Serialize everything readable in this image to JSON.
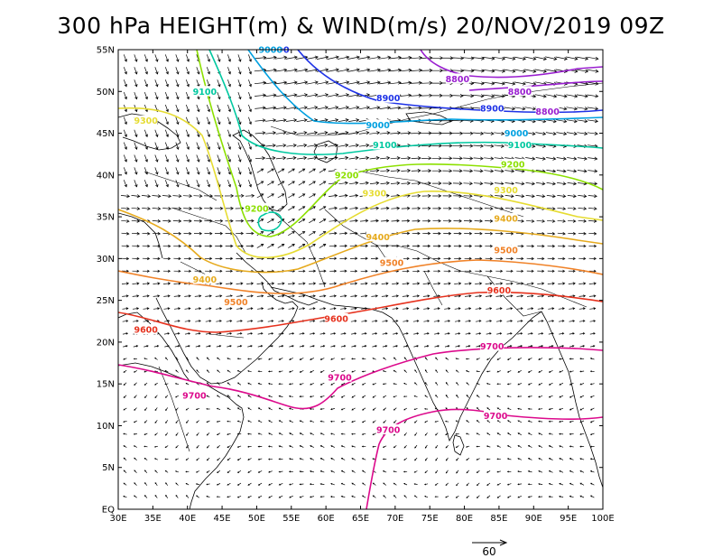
{
  "title": "300 hPa HEIGHT(m) & WIND(m/s) 20/NOV/2019 09Z",
  "lon_labels": [
    "30E",
    "35E",
    "40E",
    "45E",
    "50E",
    "55E",
    "60E",
    "65E",
    "70E",
    "75E",
    "80E",
    "85E",
    "90E",
    "95E",
    "100E"
  ],
  "lat_labels": [
    "EQ",
    "5N",
    "10N",
    "15N",
    "20N",
    "25N",
    "30N",
    "35N",
    "40N",
    "45N",
    "50N",
    "55N"
  ],
  "reference_vector": {
    "label": "60",
    "speed": 60,
    "units": "m/s"
  },
  "colors": {
    "h8800": "#9a1fd0",
    "h8900": "#1e32e6",
    "h9000": "#00a0e0",
    "h9100": "#00c8a0",
    "h9200": "#8ce000",
    "h9300": "#e6dc32",
    "h9400": "#e6aa1e",
    "h9500": "#f08228",
    "h9600": "#e6321e",
    "h9700": "#dc0a8c",
    "coast": "#000000",
    "wind": "#000000"
  },
  "contours": [
    {
      "level": "8800",
      "color_key": "h8800",
      "labels": [
        [
          59.5,
          51.5
        ],
        [
          78,
          38.3
        ],
        [
          89,
          37.3
        ],
        [
          92,
          33.2
        ],
        [
          59,
          40.9
        ],
        [
          59.8,
          34.9
        ]
      ]
    },
    {
      "level": "8900",
      "color_key": "h8900",
      "labels": [
        [
          77,
          25.9
        ],
        [
          82,
          36.3
        ],
        [
          85,
          32.2
        ]
      ]
    },
    {
      "level": "9000",
      "color_key": "h9000",
      "labels": [
        [
          89,
          21.1
        ],
        [
          61,
          15.4
        ],
        [
          90.8,
          25.6
        ],
        [
          85.8,
          22.4
        ]
      ]
    },
    {
      "level": "9100",
      "color_key": "h9100",
      "labels": [
        [
          80,
          7.2
        ],
        [
          45.4,
          24.6
        ],
        [
          81,
          13.8
        ],
        [
          80.3,
          14.7
        ]
      ]
    },
    {
      "level": "9200",
      "color_key": "h9200",
      "labels": [
        [
          55.2,
          21.1
        ],
        [
          79,
          8.3
        ]
      ]
    },
    {
      "level": "9300",
      "color_key": "h9300",
      "labels": [
        [
          81,
          19.6
        ],
        [
          62.3,
          16.0
        ],
        [
          63.8,
          13.3
        ]
      ]
    },
    {
      "level": "9400",
      "color_key": "h9400",
      "labels": [
        [
          54.5,
          15.2
        ],
        [
          52.4,
          14.2
        ],
        [
          83,
          8.3
        ]
      ]
    },
    {
      "level": "9500",
      "color_key": "h9500",
      "labels": [
        [
          86.5,
          9.5
        ],
        [
          59.2,
          12.5
        ],
        [
          75.5,
          2.0
        ]
      ]
    },
    {
      "level": "9600",
      "color_key": "h9600",
      "labels": [
        [
          63.5,
          5.4
        ],
        [
          50.5,
          0.8
        ],
        [
          87.5,
          2.6
        ]
      ]
    },
    {
      "level": "9700",
      "color_key": "h9700",
      "labels": [
        [
          97.6,
          2.2
        ],
        [
          59.2,
          16.2
        ],
        [
          75.8,
          0.8
        ]
      ]
    }
  ]
}
